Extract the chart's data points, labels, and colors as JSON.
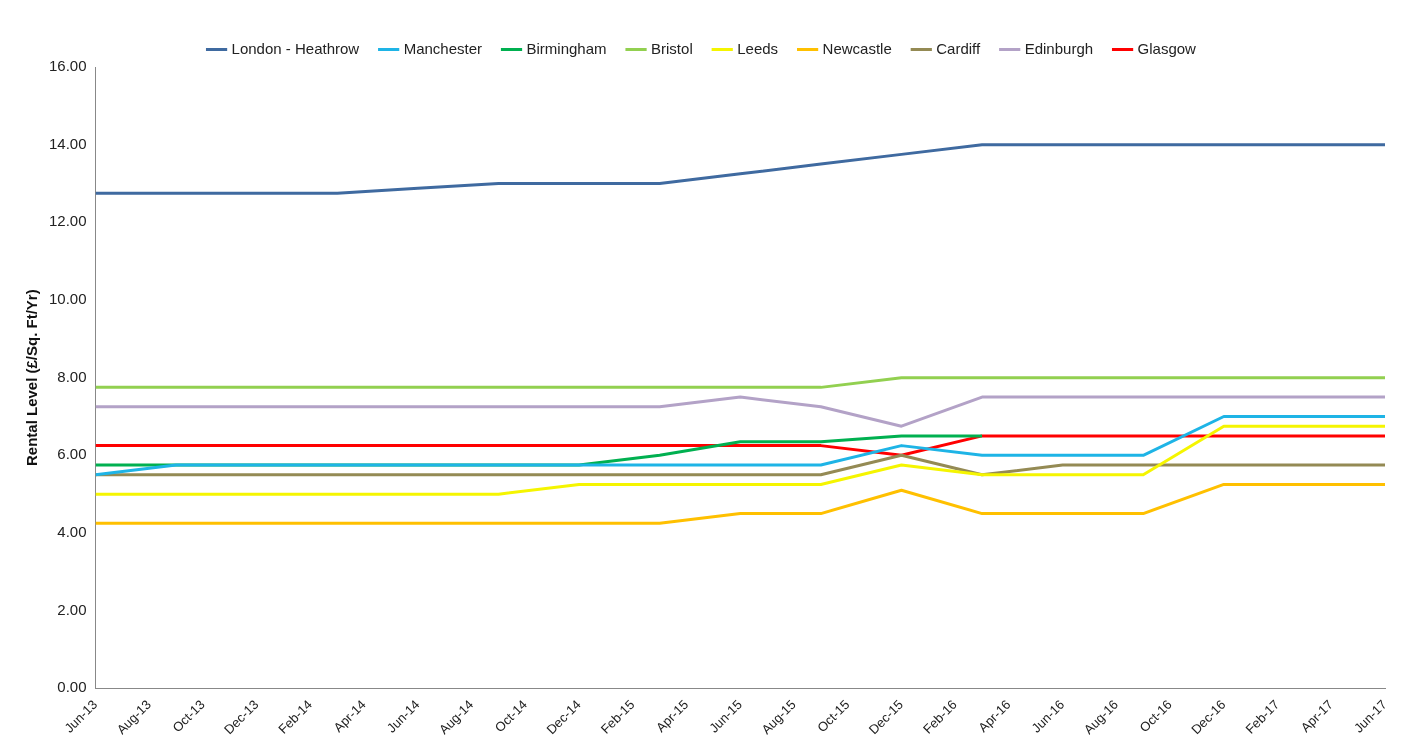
{
  "chart_data": {
    "type": "line",
    "ylabel": "Rental Level (£/Sq. Ft/Yr)",
    "x": [
      "2013-06",
      "2013-09",
      "2013-12",
      "2014-03",
      "2014-06",
      "2014-09",
      "2014-12",
      "2015-03",
      "2015-06",
      "2015-09",
      "2015-12",
      "2016-03",
      "2016-06",
      "2016-09",
      "2016-12",
      "2017-03",
      "2017-06"
    ],
    "xlim": [
      "2013-06",
      "2017-06"
    ],
    "xticks": [
      {
        "value": "2013-06",
        "label": "Jun-13"
      },
      {
        "value": "2013-08",
        "label": "Aug-13"
      },
      {
        "value": "2013-10",
        "label": "Oct-13"
      },
      {
        "value": "2013-12",
        "label": "Dec-13"
      },
      {
        "value": "2014-02",
        "label": "Feb-14"
      },
      {
        "value": "2014-04",
        "label": "Apr-14"
      },
      {
        "value": "2014-06",
        "label": "Jun-14"
      },
      {
        "value": "2014-08",
        "label": "Aug-14"
      },
      {
        "value": "2014-10",
        "label": "Oct-14"
      },
      {
        "value": "2014-12",
        "label": "Dec-14"
      },
      {
        "value": "2015-02",
        "label": "Feb-15"
      },
      {
        "value": "2015-04",
        "label": "Apr-15"
      },
      {
        "value": "2015-06",
        "label": "Jun-15"
      },
      {
        "value": "2015-08",
        "label": "Aug-15"
      },
      {
        "value": "2015-10",
        "label": "Oct-15"
      },
      {
        "value": "2015-12",
        "label": "Dec-15"
      },
      {
        "value": "2016-02",
        "label": "Feb-16"
      },
      {
        "value": "2016-04",
        "label": "Apr-16"
      },
      {
        "value": "2016-06",
        "label": "Jun-16"
      },
      {
        "value": "2016-08",
        "label": "Aug-16"
      },
      {
        "value": "2016-10",
        "label": "Oct-16"
      },
      {
        "value": "2016-12",
        "label": "Dec-16"
      },
      {
        "value": "2017-02",
        "label": "Feb-17"
      },
      {
        "value": "2017-04",
        "label": "Apr-17"
      },
      {
        "value": "2017-06",
        "label": "Jun-17"
      }
    ],
    "ylim": [
      0,
      16
    ],
    "yticks": [
      {
        "value": 0,
        "label": "0.00"
      },
      {
        "value": 2,
        "label": "2.00"
      },
      {
        "value": 4,
        "label": "4.00"
      },
      {
        "value": 6,
        "label": "6.00"
      },
      {
        "value": 8,
        "label": "8.00"
      },
      {
        "value": 10,
        "label": "10.00"
      },
      {
        "value": 12,
        "label": "12.00"
      },
      {
        "value": 14,
        "label": "14.00"
      },
      {
        "value": 16,
        "label": "16.00"
      }
    ],
    "grid": false,
    "legend": "top",
    "marker": "none",
    "series": [
      {
        "name": "London - Heathrow",
        "color": "#3f6aa0",
        "values": [
          12.75,
          12.75,
          12.75,
          12.75,
          12.88,
          13,
          13,
          13,
          13.25,
          13.5,
          13.75,
          14,
          14,
          14,
          14,
          14,
          14
        ]
      },
      {
        "name": "Manchester",
        "color": "#1eb4e6",
        "values": [
          5.5,
          5.75,
          5.75,
          5.75,
          5.75,
          5.75,
          5.75,
          5.75,
          5.75,
          5.75,
          6.25,
          6,
          6,
          6,
          7,
          7,
          7
        ]
      },
      {
        "name": "Birmingham",
        "color": "#00b050",
        "values": [
          5.75,
          5.75,
          5.75,
          5.75,
          5.75,
          5.75,
          5.75,
          6,
          6.35,
          6.35,
          6.5,
          6.5,
          null,
          null,
          null,
          null,
          null
        ]
      },
      {
        "name": "Bristol",
        "color": "#92d050",
        "values": [
          7.75,
          7.75,
          7.75,
          7.75,
          7.75,
          7.75,
          7.75,
          7.75,
          7.75,
          7.75,
          8,
          8,
          8,
          8,
          8,
          8,
          8
        ]
      },
      {
        "name": "Leeds",
        "color": "#f5f500",
        "values": [
          5,
          5,
          5,
          5,
          5,
          5,
          5.25,
          5.25,
          5.25,
          5.25,
          5.75,
          5.5,
          5.5,
          5.5,
          6.75,
          6.75,
          6.75
        ]
      },
      {
        "name": "Newcastle",
        "color": "#ffc000",
        "values": [
          4.25,
          4.25,
          4.25,
          4.25,
          4.25,
          4.25,
          4.25,
          4.25,
          4.5,
          4.5,
          5.1,
          4.5,
          4.5,
          4.5,
          5.25,
          5.25,
          5.25
        ]
      },
      {
        "name": "Cardiff",
        "color": "#948a54",
        "values": [
          5.5,
          5.5,
          5.5,
          5.5,
          5.5,
          5.5,
          5.5,
          5.5,
          5.5,
          5.5,
          6,
          5.5,
          5.75,
          5.75,
          5.75,
          5.75,
          5.75
        ]
      },
      {
        "name": "Edinburgh",
        "color": "#b3a2c7",
        "values": [
          7.25,
          7.25,
          7.25,
          7.25,
          7.25,
          7.25,
          7.25,
          7.25,
          7.5,
          7.25,
          6.75,
          7.5,
          7.5,
          7.5,
          7.5,
          7.5,
          7.5
        ]
      },
      {
        "name": "Glasgow",
        "color": "#ff0000",
        "values": [
          6.25,
          6.25,
          6.25,
          6.25,
          6.25,
          6.25,
          6.25,
          6.25,
          6.25,
          6.25,
          6,
          6.5,
          6.5,
          6.5,
          6.5,
          6.5,
          6.5
        ]
      }
    ]
  }
}
